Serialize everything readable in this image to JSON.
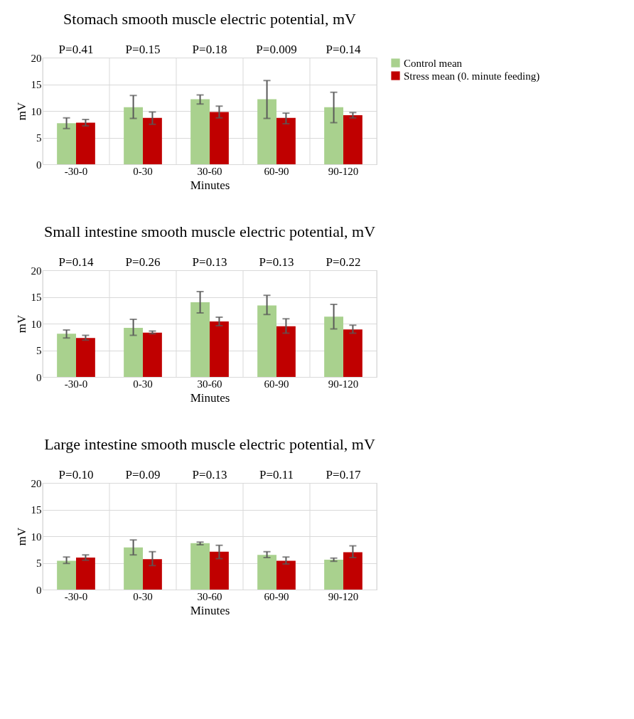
{
  "chart_data": [
    {
      "type": "bar",
      "title": "Stomach smooth muscle electric potential, mV",
      "xlabel": "Minutes",
      "ylabel": "mV",
      "categories": [
        "-30-0",
        "0-30",
        "30-60",
        "60-90",
        "90-120"
      ],
      "series": [
        {
          "name": "Control mean",
          "color": "#a9d18e",
          "values": [
            7.7,
            10.7,
            12.2,
            12.2,
            10.7
          ],
          "errors": [
            [
              6.7,
              8.7
            ],
            [
              8.6,
              12.9
            ],
            [
              11.3,
              13.0
            ],
            [
              8.6,
              15.7
            ],
            [
              7.8,
              13.5
            ]
          ]
        },
        {
          "name": "Stress mean (0. minute feeding)",
          "color": "#c00000",
          "values": [
            7.8,
            8.7,
            9.8,
            8.7,
            9.2
          ],
          "errors": [
            [
              7.2,
              8.4
            ],
            [
              7.5,
              9.8
            ],
            [
              8.7,
              10.9
            ],
            [
              7.6,
              9.6
            ],
            [
              8.7,
              9.7
            ]
          ]
        }
      ],
      "ylim": [
        0,
        20
      ],
      "yticks": [
        0,
        5,
        10,
        15,
        20
      ],
      "grid": true,
      "legend": "right",
      "annotations": [
        "P=0.41",
        "P=0.15",
        "P=0.18",
        "P=0.009",
        "P=0.14"
      ]
    },
    {
      "type": "bar",
      "title": "Small intestine smooth muscle electric potential, mV",
      "xlabel": "Minutes",
      "ylabel": "mV",
      "categories": [
        "-30-0",
        "0-30",
        "30-60",
        "60-90",
        "90-120"
      ],
      "series": [
        {
          "name": "Control mean",
          "color": "#a9d18e",
          "values": [
            8.1,
            9.2,
            14.0,
            13.4,
            11.3
          ],
          "errors": [
            [
              7.3,
              8.8
            ],
            [
              7.8,
              10.8
            ],
            [
              12.0,
              16.0
            ],
            [
              11.7,
              15.3
            ],
            [
              9.0,
              13.6
            ]
          ]
        },
        {
          "name": "Stress mean (0. minute feeding)",
          "color": "#c00000",
          "values": [
            7.3,
            8.3,
            10.4,
            9.5,
            8.9
          ],
          "errors": [
            [
              6.9,
              7.8
            ],
            [
              8.1,
              8.6
            ],
            [
              9.6,
              11.2
            ],
            [
              8.2,
              10.9
            ],
            [
              8.2,
              9.7
            ]
          ]
        }
      ],
      "ylim": [
        0,
        20
      ],
      "yticks": [
        0,
        5,
        10,
        15,
        20
      ],
      "grid": true,
      "legend": "right",
      "annotations": [
        "P=0.14",
        "P=0.26",
        "P=0.13",
        "P=0.13",
        "P=0.22"
      ]
    },
    {
      "type": "bar",
      "title": "Large intestine smooth muscle electric potential, mV",
      "xlabel": "Minutes",
      "ylabel": "mV",
      "categories": [
        "-30-0",
        "0-30",
        "30-60",
        "60-90",
        "90-120"
      ],
      "series": [
        {
          "name": "Control mean",
          "color": "#a9d18e",
          "values": [
            5.4,
            7.9,
            8.7,
            6.5,
            5.6
          ],
          "errors": [
            [
              4.9,
              6.1
            ],
            [
              6.5,
              9.3
            ],
            [
              8.4,
              8.9
            ],
            [
              6.0,
              7.1
            ],
            [
              5.3,
              5.9
            ]
          ]
        },
        {
          "name": "Stress mean (0. minute feeding)",
          "color": "#c00000",
          "values": [
            6.0,
            5.7,
            7.1,
            5.4,
            7.0
          ],
          "errors": [
            [
              5.5,
              6.5
            ],
            [
              4.5,
              7.1
            ],
            [
              5.8,
              8.3
            ],
            [
              4.8,
              6.1
            ],
            [
              6.0,
              8.2
            ]
          ]
        }
      ],
      "ylim": [
        0,
        20
      ],
      "yticks": [
        0,
        5,
        10,
        15,
        20
      ],
      "grid": true,
      "legend": "right",
      "annotations": [
        "P=0.10",
        "P=0.09",
        "P=0.13",
        "P=0.11",
        "P=0.17"
      ]
    }
  ]
}
